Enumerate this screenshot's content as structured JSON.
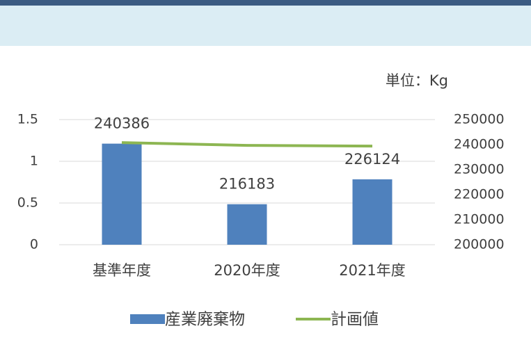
{
  "chart_data": {
    "type": "bar-line",
    "unit_label": "単位：Kg",
    "categories": [
      "基準年度",
      "2020年度",
      "2021年度"
    ],
    "series": [
      {
        "name": "産業廃棄物",
        "type": "bar",
        "color": "#4f81bd",
        "axis": "y2",
        "values": [
          240386,
          216183,
          226124
        ],
        "show_labels": true
      },
      {
        "name": "計画値",
        "type": "line",
        "color": "#8db652",
        "axis": "y2",
        "values": [
          240800,
          239700,
          239400
        ],
        "show_labels": false
      }
    ],
    "ylim": [
      0,
      1.5
    ],
    "yticks": [
      0,
      0.5,
      1,
      1.5
    ],
    "y2lim": [
      200000,
      250000
    ],
    "y2ticks": [
      200000,
      210000,
      220000,
      230000,
      240000,
      250000
    ],
    "grid": true,
    "legend": "bottom"
  }
}
